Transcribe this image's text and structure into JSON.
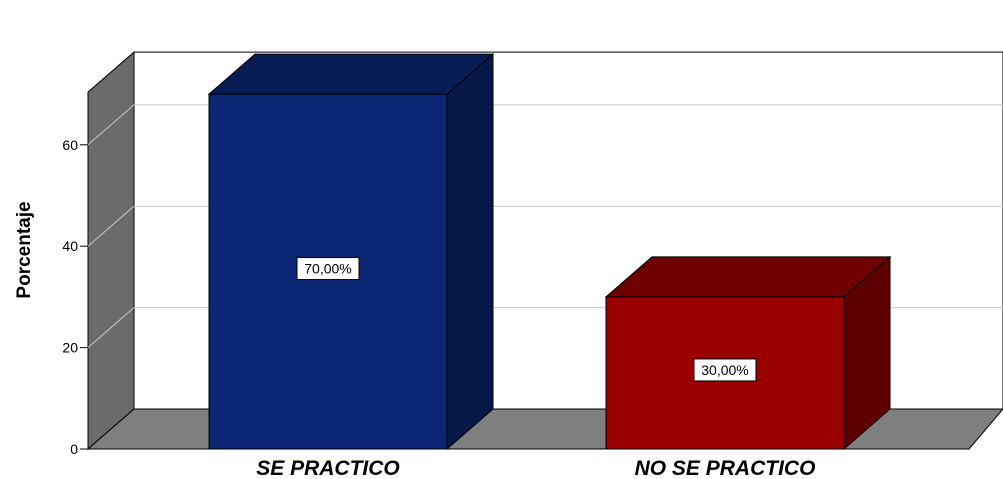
{
  "chart_data": {
    "type": "bar",
    "three_d": true,
    "title": "",
    "xlabel": "",
    "ylabel": "Porcentaje",
    "ylim": [
      0,
      70
    ],
    "yticks": [
      "0",
      "20",
      "40",
      "60"
    ],
    "categories": [
      "SE PRACTICO",
      "NO SE PRACTICO"
    ],
    "values": [
      70,
      30
    ],
    "data_labels": [
      "70,00%",
      "30,00%"
    ],
    "colors": [
      "#0a2674",
      "#9a0000"
    ],
    "grid": true,
    "legend": "none"
  }
}
